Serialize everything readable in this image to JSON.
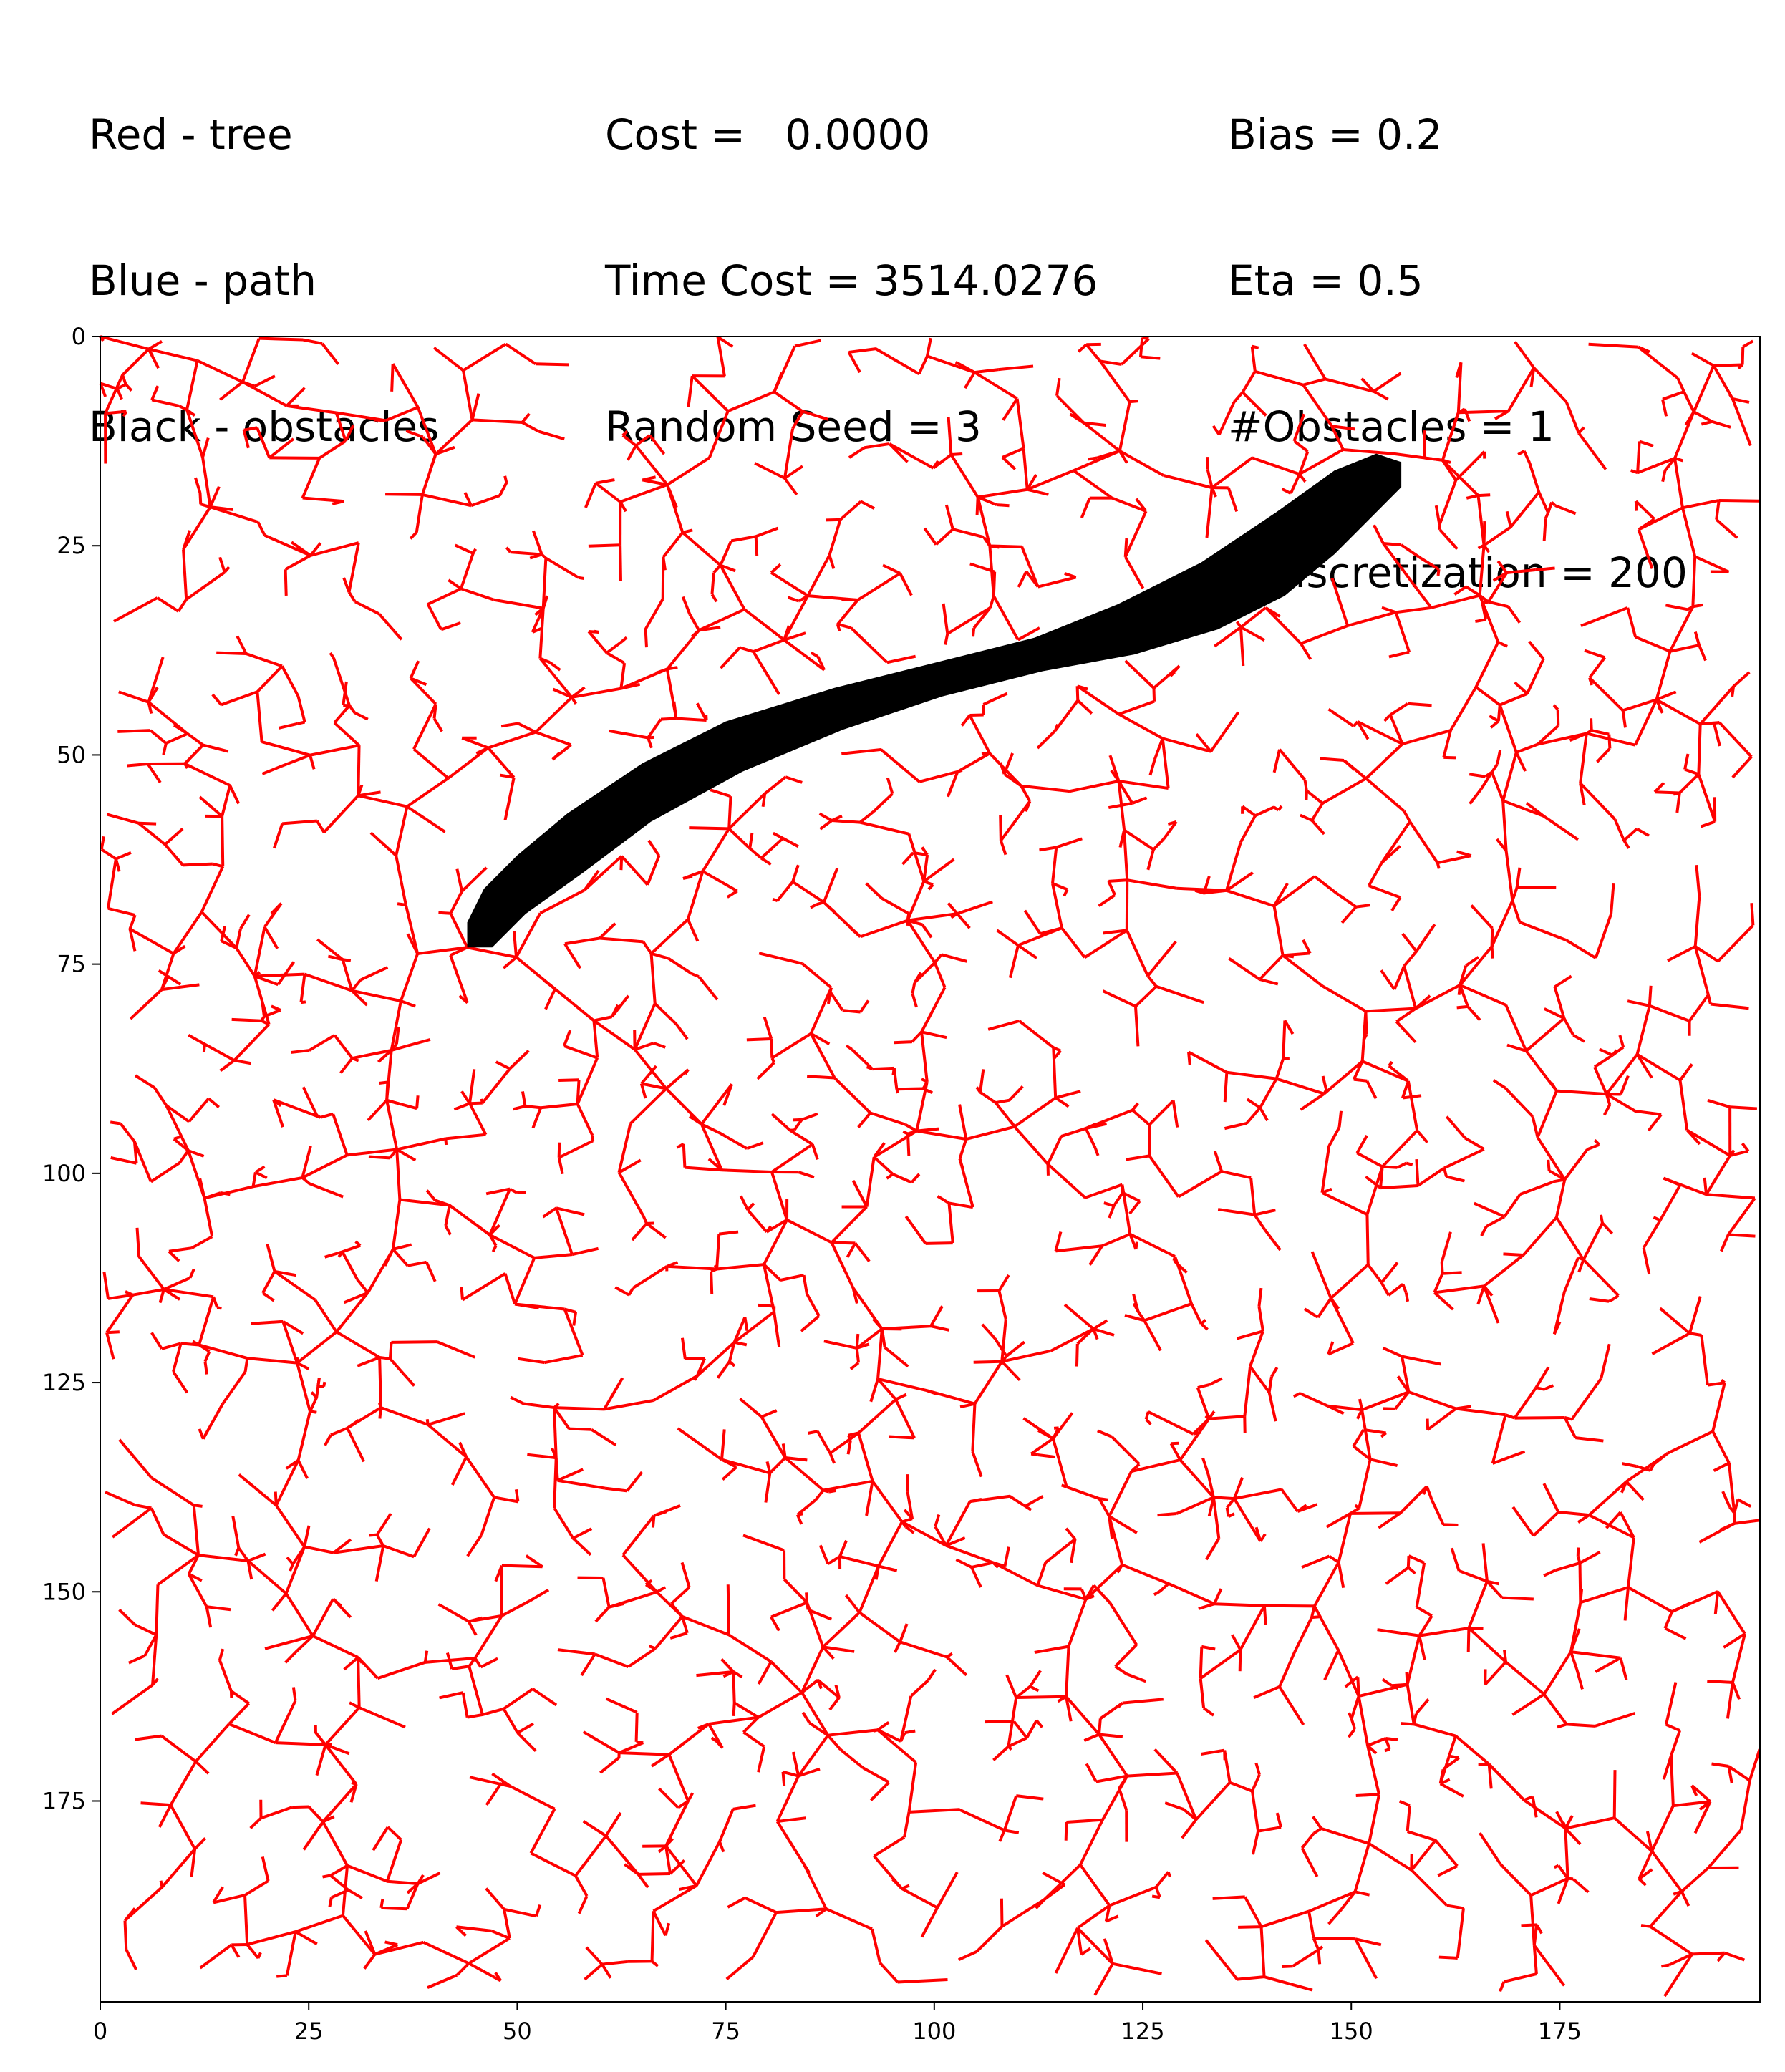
{
  "legend": {
    "tree": "Red - tree",
    "path": "Blue - path",
    "obstacles": "Black - obstacles"
  },
  "stats": {
    "cost": "Cost =   0.0000",
    "time_cost": "Time Cost = 3514.0276",
    "random_seed": "Random Seed = 3"
  },
  "params": {
    "bias": "Bias = 0.2",
    "eta": "Eta = 0.5",
    "obstacles": "#Obstacles = 1",
    "discretization": "#Discretization = 200"
  },
  "chart_data": {
    "type": "scatter",
    "title": "",
    "xlabel": "",
    "ylabel": "",
    "xlim": [
      0,
      199
    ],
    "ylim": [
      199,
      0
    ],
    "y_inverted": true,
    "x_ticks": [
      "0",
      "25",
      "50",
      "75",
      "100",
      "125",
      "150",
      "175"
    ],
    "y_ticks": [
      "0",
      "25",
      "50",
      "75",
      "100",
      "125",
      "150",
      "175"
    ],
    "grid": false,
    "colors": {
      "tree": "#ff0000",
      "path": "#0000ff",
      "obstacles": "#000000"
    },
    "tree_roots": [
      {
        "x": 0,
        "y": 0
      },
      {
        "x": 44,
        "y": 73
      },
      {
        "x": 155,
        "y": 14
      }
    ],
    "obstacle_outline": [
      {
        "x": 44,
        "y": 73
      },
      {
        "x": 44,
        "y": 70
      },
      {
        "x": 46,
        "y": 66
      },
      {
        "x": 50,
        "y": 62
      },
      {
        "x": 56,
        "y": 57
      },
      {
        "x": 65,
        "y": 51
      },
      {
        "x": 75,
        "y": 46
      },
      {
        "x": 88,
        "y": 42
      },
      {
        "x": 100,
        "y": 39
      },
      {
        "x": 112,
        "y": 36
      },
      {
        "x": 122,
        "y": 32
      },
      {
        "x": 132,
        "y": 27
      },
      {
        "x": 141,
        "y": 21
      },
      {
        "x": 148,
        "y": 16
      },
      {
        "x": 153,
        "y": 14
      },
      {
        "x": 156,
        "y": 15
      },
      {
        "x": 156,
        "y": 18
      },
      {
        "x": 153,
        "y": 21
      },
      {
        "x": 148,
        "y": 26
      },
      {
        "x": 142,
        "y": 31
      },
      {
        "x": 134,
        "y": 35
      },
      {
        "x": 124,
        "y": 38
      },
      {
        "x": 113,
        "y": 40
      },
      {
        "x": 101,
        "y": 43
      },
      {
        "x": 89,
        "y": 47
      },
      {
        "x": 77,
        "y": 52
      },
      {
        "x": 66,
        "y": 58
      },
      {
        "x": 58,
        "y": 64
      },
      {
        "x": 51,
        "y": 69
      },
      {
        "x": 47,
        "y": 73
      }
    ],
    "path_points": []
  }
}
